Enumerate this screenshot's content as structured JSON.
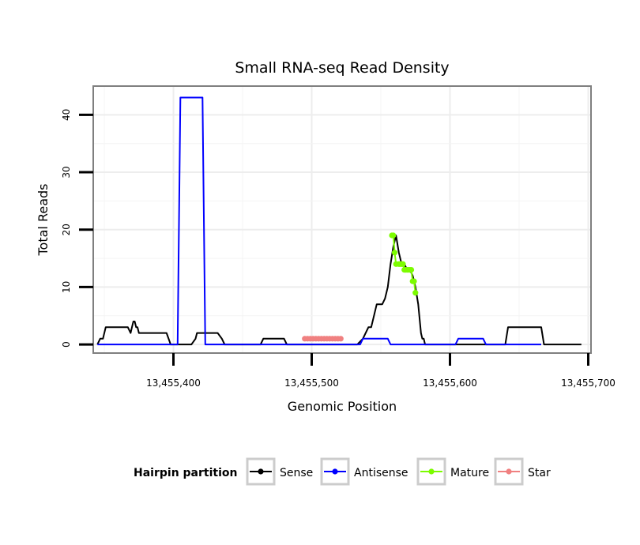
{
  "chart_data": {
    "type": "line",
    "title": "Small RNA-seq Read Density",
    "xlabel": "Genomic Position",
    "ylabel": "Total Reads",
    "xlim": [
      13455342,
      13455702
    ],
    "ylim": [
      -1.5,
      45
    ],
    "x_ticks": [
      13455400,
      13455500,
      13455600,
      13455700
    ],
    "x_tick_labels": [
      "13,455,400",
      "13,455,500",
      "13,455,600",
      "13,455,700"
    ],
    "y_ticks": [
      0,
      10,
      20,
      30,
      40
    ],
    "y_tick_labels": [
      "0",
      "10",
      "20",
      "30",
      "40"
    ],
    "grid": true,
    "legend_title": "Hairpin partition",
    "legend_position": "bottom",
    "series": [
      {
        "name": "Sense",
        "color": "#000000",
        "markers": false,
        "x": [
          13455345,
          13455347,
          13455349,
          13455351,
          13455352,
          13455353,
          13455355,
          13455364,
          13455367,
          13455369,
          13455370,
          13455371,
          13455372,
          13455373,
          13455374,
          13455375,
          13455378,
          13455395,
          13455398,
          13455400,
          13455413,
          13455416,
          13455417,
          13455418,
          13455420,
          13455432,
          13455435,
          13455437,
          13455443,
          13455463,
          13455465,
          13455480,
          13455482,
          13455533,
          13455537,
          13455539,
          13455541,
          13455543,
          13455545,
          13455547,
          13455551,
          13455553,
          13455555,
          13455557,
          13455559,
          13455561,
          13455563,
          13455565,
          13455567,
          13455569,
          13455571,
          13455573,
          13455575,
          13455577,
          13455579,
          13455580,
          13455581,
          13455582,
          13455640,
          13455642,
          13455666,
          13455668,
          13455695
        ],
        "y": [
          0,
          1,
          1,
          3,
          3,
          3,
          3,
          3,
          3,
          2,
          3,
          4,
          4,
          3,
          3,
          2,
          2,
          2,
          0,
          0,
          0,
          1,
          2,
          2,
          2,
          2,
          1,
          0,
          0,
          0,
          1,
          1,
          0,
          0,
          1,
          2,
          3,
          3,
          5,
          7,
          7,
          8,
          10,
          14,
          17,
          19,
          16,
          14,
          14,
          13,
          13,
          12,
          10,
          7,
          2,
          1,
          1,
          0,
          0,
          3,
          3,
          0,
          0
        ]
      },
      {
        "name": "Antisense",
        "color": "#0000ff",
        "markers": false,
        "x": [
          13455345,
          13455403,
          13455405,
          13455421,
          13455423,
          13455480,
          13455535,
          13455537,
          13455555,
          13455557,
          13455604,
          13455606,
          13455624,
          13455626,
          13455640,
          13455666
        ],
        "y": [
          0,
          0,
          43,
          43,
          0,
          0,
          0,
          1,
          1,
          0,
          0,
          1,
          1,
          0,
          0,
          0
        ]
      },
      {
        "name": "Mature",
        "color": "#7cfc00",
        "markers": true,
        "x": [
          13455558,
          13455559,
          13455560,
          13455561,
          13455563,
          13455564,
          13455565,
          13455566,
          13455567,
          13455568,
          13455569,
          13455570,
          13455571,
          13455572,
          13455573,
          13455574,
          13455575
        ],
        "y": [
          19,
          19,
          16,
          14,
          14,
          14,
          14,
          14,
          13,
          13,
          13,
          13,
          13,
          13,
          11,
          11,
          9
        ]
      },
      {
        "name": "Star",
        "color": "#f08080",
        "markers": true,
        "x": [
          13455495,
          13455497,
          13455499,
          13455501,
          13455503,
          13455505,
          13455507,
          13455509,
          13455511,
          13455513,
          13455515,
          13455517,
          13455519,
          13455521
        ],
        "y": [
          1,
          1,
          1,
          1,
          1,
          1,
          1,
          1,
          1,
          1,
          1,
          1,
          1,
          1
        ]
      }
    ]
  }
}
